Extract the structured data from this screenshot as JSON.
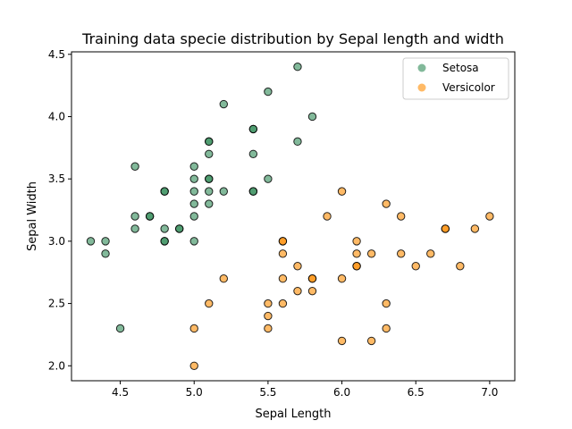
{
  "chart_data": {
    "type": "scatter",
    "title": "Training data specie distribution by Sepal length and width",
    "xlabel": "Sepal Length",
    "ylabel": "Sepal Width",
    "xlim": [
      4.17,
      7.17
    ],
    "ylim": [
      1.88,
      4.52
    ],
    "x_ticks": [
      "4.5",
      "5.0",
      "5.5",
      "6.0",
      "6.5",
      "7.0"
    ],
    "y_ticks": [
      "2.0",
      "2.5",
      "3.0",
      "3.5",
      "4.0",
      "4.5"
    ],
    "grid": false,
    "legend_position": "top-right",
    "series": [
      {
        "name": "Setosa",
        "color": "#2e8b57",
        "points": [
          [
            5.7,
            4.4
          ],
          [
            5.5,
            4.2
          ],
          [
            5.2,
            4.1
          ],
          [
            5.8,
            4.0
          ],
          [
            5.4,
            3.9
          ],
          [
            5.4,
            3.9
          ],
          [
            5.1,
            3.8
          ],
          [
            5.1,
            3.8
          ],
          [
            5.7,
            3.8
          ],
          [
            5.1,
            3.7
          ],
          [
            5.4,
            3.7
          ],
          [
            4.6,
            3.6
          ],
          [
            5.0,
            3.6
          ],
          [
            5.0,
            3.5
          ],
          [
            5.1,
            3.5
          ],
          [
            5.1,
            3.5
          ],
          [
            5.5,
            3.5
          ],
          [
            4.8,
            3.4
          ],
          [
            4.8,
            3.4
          ],
          [
            5.0,
            3.4
          ],
          [
            5.1,
            3.4
          ],
          [
            5.2,
            3.4
          ],
          [
            5.4,
            3.4
          ],
          [
            5.4,
            3.4
          ],
          [
            5.0,
            3.3
          ],
          [
            5.1,
            3.3
          ],
          [
            4.6,
            3.2
          ],
          [
            4.7,
            3.2
          ],
          [
            4.7,
            3.2
          ],
          [
            5.0,
            3.2
          ],
          [
            4.6,
            3.1
          ],
          [
            4.8,
            3.1
          ],
          [
            4.9,
            3.1
          ],
          [
            4.9,
            3.1
          ],
          [
            4.3,
            3.0
          ],
          [
            4.4,
            3.0
          ],
          [
            4.8,
            3.0
          ],
          [
            4.8,
            3.0
          ],
          [
            5.0,
            3.0
          ],
          [
            4.4,
            2.9
          ],
          [
            4.5,
            2.3
          ]
        ]
      },
      {
        "name": "Versicolor",
        "color": "#ff8c00",
        "points": [
          [
            6.0,
            3.4
          ],
          [
            6.3,
            3.3
          ],
          [
            5.9,
            3.2
          ],
          [
            6.4,
            3.2
          ],
          [
            7.0,
            3.2
          ],
          [
            6.7,
            3.1
          ],
          [
            6.7,
            3.1
          ],
          [
            6.9,
            3.1
          ],
          [
            5.6,
            3.0
          ],
          [
            5.6,
            3.0
          ],
          [
            6.1,
            3.0
          ],
          [
            5.6,
            2.9
          ],
          [
            6.1,
            2.9
          ],
          [
            6.2,
            2.9
          ],
          [
            6.4,
            2.9
          ],
          [
            6.6,
            2.9
          ],
          [
            5.7,
            2.8
          ],
          [
            6.1,
            2.8
          ],
          [
            6.1,
            2.8
          ],
          [
            6.5,
            2.8
          ],
          [
            6.8,
            2.8
          ],
          [
            5.2,
            2.7
          ],
          [
            5.6,
            2.7
          ],
          [
            5.8,
            2.7
          ],
          [
            5.8,
            2.7
          ],
          [
            6.0,
            2.7
          ],
          [
            5.7,
            2.6
          ],
          [
            5.8,
            2.6
          ],
          [
            5.1,
            2.5
          ],
          [
            5.5,
            2.5
          ],
          [
            5.6,
            2.5
          ],
          [
            6.3,
            2.5
          ],
          [
            5.5,
            2.4
          ],
          [
            5.0,
            2.3
          ],
          [
            5.5,
            2.3
          ],
          [
            6.3,
            2.3
          ],
          [
            6.0,
            2.2
          ],
          [
            6.2,
            2.2
          ],
          [
            5.0,
            2.0
          ]
        ]
      }
    ]
  }
}
